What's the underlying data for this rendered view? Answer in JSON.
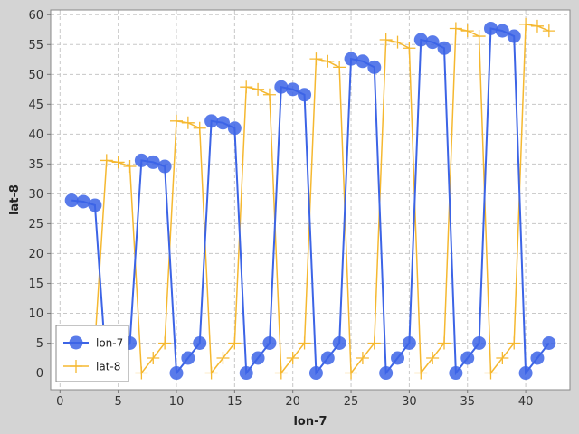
{
  "chart_data": {
    "type": "line",
    "title": "",
    "xlabel": "lon-7",
    "ylabel": "lat-8",
    "xlim": [
      -0.8,
      43.8
    ],
    "ylim": [
      -2.8,
      60.8
    ],
    "x_ticks": [
      0,
      5,
      10,
      15,
      20,
      25,
      30,
      35,
      40
    ],
    "y_ticks": [
      0,
      5,
      10,
      15,
      20,
      25,
      30,
      35,
      40,
      45,
      50,
      55,
      60
    ],
    "grid": true,
    "legend_position": "bottom-left",
    "background": "#ffffff",
    "frame_color": "#d4d4d4",
    "series": [
      {
        "name": "lon-7",
        "color": "#3c64e6",
        "marker": "circle",
        "points": [
          [
            1,
            28.9
          ],
          [
            2,
            28.7
          ],
          [
            3,
            28.1
          ],
          [
            4,
            0
          ],
          [
            5,
            2.5
          ],
          [
            6,
            5
          ],
          [
            7,
            35.6
          ],
          [
            8,
            35.3
          ],
          [
            9,
            34.6
          ],
          [
            10,
            0
          ],
          [
            11,
            2.5
          ],
          [
            12,
            5
          ],
          [
            13,
            42.2
          ],
          [
            14,
            41.9
          ],
          [
            15,
            41.0
          ],
          [
            16,
            0
          ],
          [
            17,
            2.5
          ],
          [
            18,
            5
          ],
          [
            19,
            47.9
          ],
          [
            20,
            47.5
          ],
          [
            21,
            46.6
          ],
          [
            22,
            0
          ],
          [
            23,
            2.5
          ],
          [
            24,
            5
          ],
          [
            25,
            52.6
          ],
          [
            26,
            52.2
          ],
          [
            27,
            51.2
          ],
          [
            28,
            0
          ],
          [
            29,
            2.5
          ],
          [
            30,
            5
          ],
          [
            31,
            55.8
          ],
          [
            32,
            55.4
          ],
          [
            33,
            54.4
          ],
          [
            34,
            0
          ],
          [
            35,
            2.5
          ],
          [
            36,
            5
          ],
          [
            37,
            57.7
          ],
          [
            38,
            57.3
          ],
          [
            39,
            56.4
          ],
          [
            40,
            0
          ],
          [
            41,
            2.5
          ],
          [
            42,
            5
          ]
        ]
      },
      {
        "name": "lat-8",
        "color": "#f5b830",
        "marker": "plus",
        "points": [
          [
            1,
            0
          ],
          [
            2,
            2.5
          ],
          [
            3,
            5
          ],
          [
            4,
            35.6
          ],
          [
            5,
            35.3
          ],
          [
            6,
            34.6
          ],
          [
            7,
            0
          ],
          [
            8,
            2.5
          ],
          [
            9,
            5
          ],
          [
            10,
            42.2
          ],
          [
            11,
            41.9
          ],
          [
            12,
            41.0
          ],
          [
            13,
            0
          ],
          [
            14,
            2.5
          ],
          [
            15,
            5
          ],
          [
            16,
            47.9
          ],
          [
            17,
            47.5
          ],
          [
            18,
            46.6
          ],
          [
            19,
            0
          ],
          [
            20,
            2.5
          ],
          [
            21,
            5
          ],
          [
            22,
            52.6
          ],
          [
            23,
            52.2
          ],
          [
            24,
            51.2
          ],
          [
            25,
            0
          ],
          [
            26,
            2.5
          ],
          [
            27,
            5
          ],
          [
            28,
            55.8
          ],
          [
            29,
            55.4
          ],
          [
            30,
            54.4
          ],
          [
            31,
            0
          ],
          [
            32,
            2.5
          ],
          [
            33,
            5
          ],
          [
            34,
            57.7
          ],
          [
            35,
            57.3
          ],
          [
            36,
            56.4
          ],
          [
            37,
            0
          ],
          [
            38,
            2.5
          ],
          [
            39,
            5
          ],
          [
            40,
            58.4
          ],
          [
            41,
            58.1
          ],
          [
            42,
            57.3
          ]
        ]
      }
    ]
  }
}
